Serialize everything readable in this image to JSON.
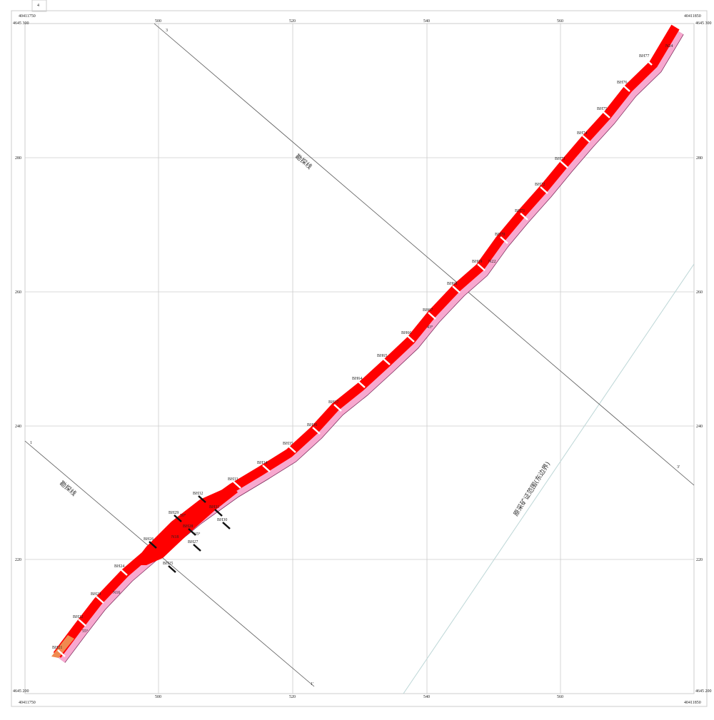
{
  "sheet_tab": "4",
  "corners": {
    "top_left_x": "40411750",
    "top_right_x": "40411850",
    "bottom_left_x": "40411750",
    "bottom_right_x": "40411850",
    "y_top": "4645 300",
    "y_bottom": "4645 200"
  },
  "grid": {
    "x_labels": [
      "500",
      "520",
      "540",
      "560"
    ],
    "y_labels": [
      "280",
      "260",
      "240",
      "220"
    ]
  },
  "exploration_lines": [
    {
      "start": "3",
      "end": "3'",
      "label": "勘探线"
    },
    {
      "start": "1",
      "end": "1'",
      "label": "勘探线"
    }
  ],
  "boundary_label": "原采矿证范围(东边界)",
  "boreholes": [
    "BH21",
    "BH22",
    "BH23",
    "BH24",
    "BH25",
    "BH26",
    "BH27",
    "BH28",
    "BH29",
    "BH30",
    "BH31",
    "BH32",
    "BH33",
    "BH34",
    "BH35",
    "BH36",
    "BH37",
    "BH64",
    "BH65",
    "BH66",
    "BH67",
    "BH68",
    "BH69",
    "BH70",
    "BH71",
    "BH72",
    "BH73",
    "BH74",
    "BH75",
    "BH76",
    "BH77"
  ],
  "annotations": [
    "50°",
    "65°",
    "N18",
    "55°",
    "N16",
    "N22",
    "43°",
    "N24"
  ],
  "colors": {
    "ore_body": "#ff0000",
    "wall_rock": "#f7a8cf",
    "grid": "#c8c8c8",
    "boundary": "#bcd6d6"
  }
}
